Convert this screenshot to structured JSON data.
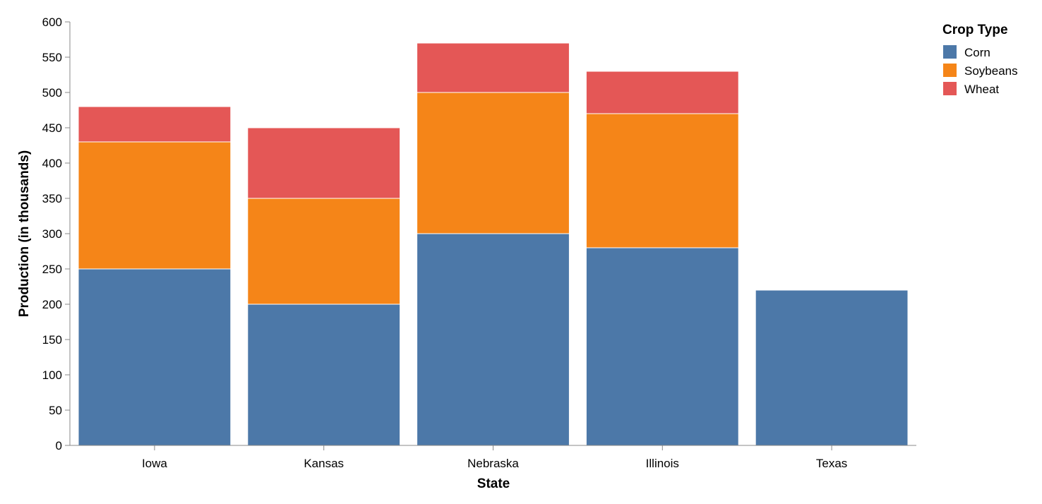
{
  "chart_data": {
    "type": "bar",
    "stacked": true,
    "title": "",
    "xlabel": "State",
    "ylabel": "Production (in thousands)",
    "ylim": [
      0,
      600
    ],
    "yticks": [
      0,
      50,
      100,
      150,
      200,
      250,
      300,
      350,
      400,
      450,
      500,
      550,
      600
    ],
    "grid": false,
    "legend": {
      "title": "Crop Type",
      "placement": "top-right"
    },
    "categories": [
      "Iowa",
      "Kansas",
      "Nebraska",
      "Illinois",
      "Texas"
    ],
    "series": [
      {
        "name": "Corn",
        "color": "#4c78a8",
        "values": [
          250,
          200,
          300,
          280,
          220
        ]
      },
      {
        "name": "Soybeans",
        "color": "#f58518",
        "values": [
          180,
          150,
          200,
          190,
          0
        ]
      },
      {
        "name": "Wheat",
        "color": "#e45756",
        "values": [
          50,
          100,
          70,
          60,
          0
        ]
      }
    ]
  }
}
